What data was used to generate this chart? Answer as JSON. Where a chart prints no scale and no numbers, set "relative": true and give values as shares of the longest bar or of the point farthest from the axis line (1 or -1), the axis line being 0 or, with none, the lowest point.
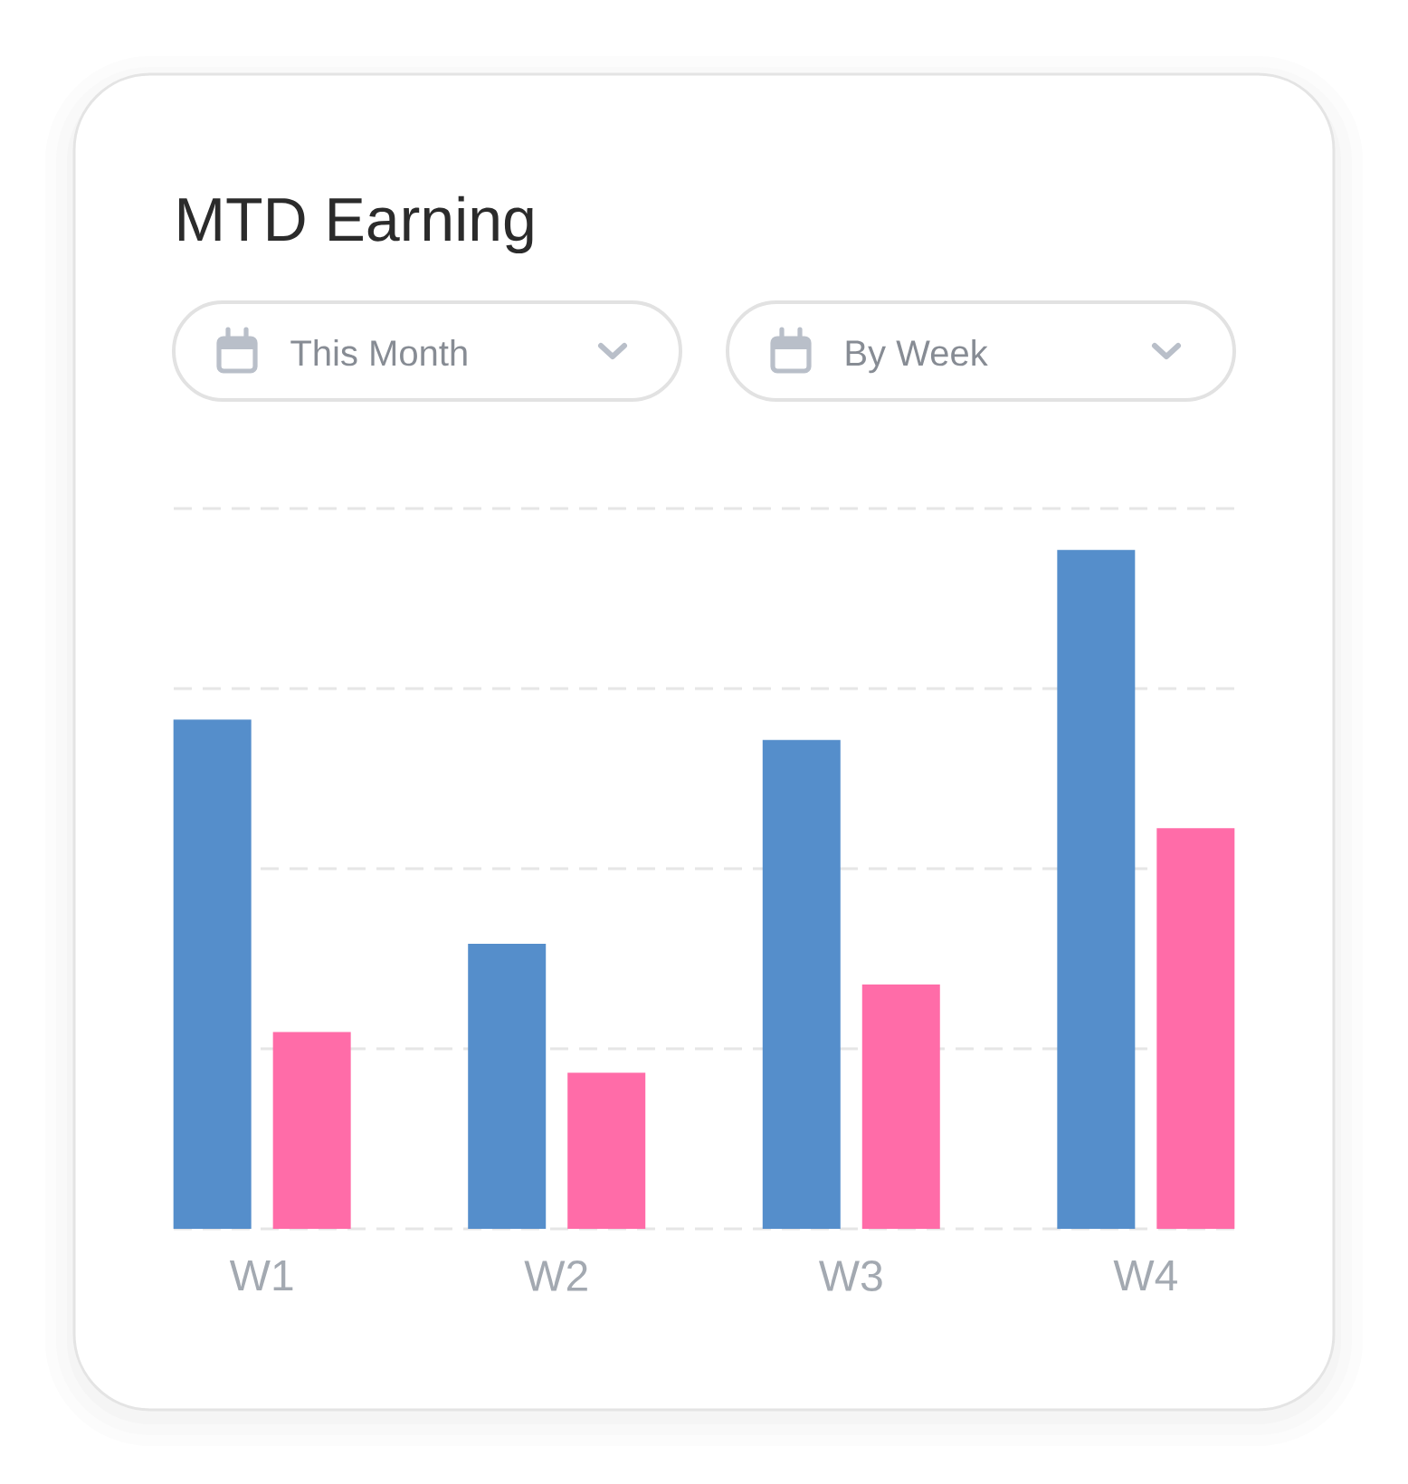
{
  "chart_data": {
    "type": "bar",
    "title": "MTD Earning",
    "annotations": [
      "This Month",
      "By Week"
    ],
    "categories": [
      "W1",
      "W2",
      "W3",
      "W4"
    ],
    "series": [
      {
        "color": "#558ecb",
        "values": [
          0.75,
          0.42,
          0.72,
          1
        ]
      },
      {
        "color": "#ff6ca8",
        "values": [
          0.29,
          0.23,
          0.36,
          0.59
        ]
      }
    ],
    "relative": true,
    "grid": "y"
  }
}
